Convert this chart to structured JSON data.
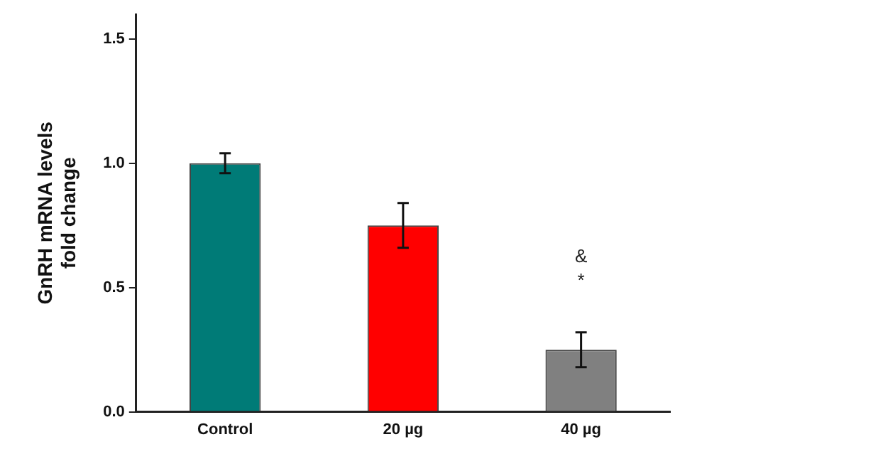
{
  "chart_data": {
    "type": "bar",
    "ylabel": "GnRH mRNA levels\nfold change",
    "categories": [
      "Control",
      "20 µg",
      "40 µg"
    ],
    "values": [
      1.0,
      0.75,
      0.25
    ],
    "colors": [
      "#007b77",
      "#ff0000",
      "#808080"
    ],
    "errors": [
      0.04,
      0.09,
      0.07
    ],
    "ylim": [
      0,
      1.6
    ],
    "yticks": [
      {
        "value": 0,
        "label": "0.0"
      },
      0.5,
      {
        "value": 1,
        "label": "1.0"
      },
      1.5
    ],
    "grid": false,
    "legend": false,
    "annotations": [
      "&",
      "*"
    ]
  }
}
